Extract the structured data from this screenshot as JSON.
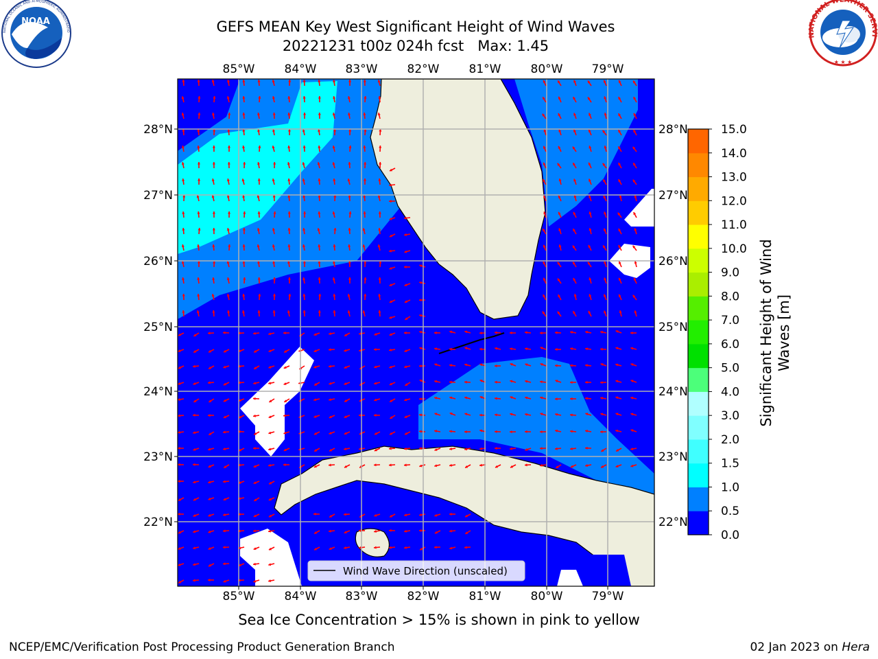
{
  "header": {
    "title_line1": "GEFS MEAN Key West Significant Height of Wind Waves",
    "title_line2": "20221231 t00z 024h fcst   Max: 1.45",
    "left_logo": "NOAA",
    "left_logo_ring": "NATIONAL OCEANIC AND ATMOSPHERIC ADMINISTRATION · U.S. DEPARTMENT OF COMMERCE",
    "right_logo_ring": "NATIONAL WEATHER SERVICE"
  },
  "map": {
    "lon_labels_top": [
      "85°W",
      "84°W",
      "83°W",
      "82°W",
      "81°W",
      "80°W",
      "79°W"
    ],
    "lon_labels_bottom": [
      "85°W",
      "84°W",
      "83°W",
      "82°W",
      "81°W",
      "80°W",
      "79°W"
    ],
    "lat_labels_left": [
      "28°N",
      "27°N",
      "26°N",
      "25°N",
      "24°N",
      "23°N",
      "22°N"
    ],
    "lat_labels_right": [
      "28°N",
      "27°N",
      "26°N",
      "25°N",
      "24°N",
      "23°N",
      "22°N"
    ],
    "legend_label": "Wind Wave Direction (unscaled)",
    "arrow_color": "#ff0000",
    "land_color": "#eeeedd",
    "ocean_low_color": "#0000ff",
    "ocean_mid_color": "#0080ff",
    "ocean_high_color": "#00ffff"
  },
  "colorbar": {
    "ticks": [
      "15.0",
      "14.0",
      "13.0",
      "12.0",
      "11.0",
      "10.0",
      "9.0",
      "8.0",
      "7.0",
      "6.0",
      "5.0",
      "4.0",
      "3.0",
      "2.0",
      "1.5",
      "1.0",
      "0.5",
      "0.0"
    ],
    "label": "Significant Height of Wind Waves [m]",
    "label_line1": "Significant Height of Wind",
    "label_line2": "Waves [m]",
    "colors": [
      "#0000ff",
      "#0080ff",
      "#00ffff",
      "#40ffff",
      "#80ffff",
      "#b0ffff",
      "#4cff7a",
      "#00e000",
      "#22ee00",
      "#55ee00",
      "#aaee00",
      "#ccff00",
      "#ffff00",
      "#ffcc00",
      "#ffaa00",
      "#ff8800",
      "#ff6600",
      "#ff3300",
      "#ff0000"
    ]
  },
  "footer": {
    "sea_ice_note": "Sea Ice Concentration > 15% is shown in pink to yellow",
    "left": "NCEP/EMC/Verification Post Processing Product Generation Branch",
    "date": "02 Jan 2023 on ",
    "host": "Hera"
  }
}
